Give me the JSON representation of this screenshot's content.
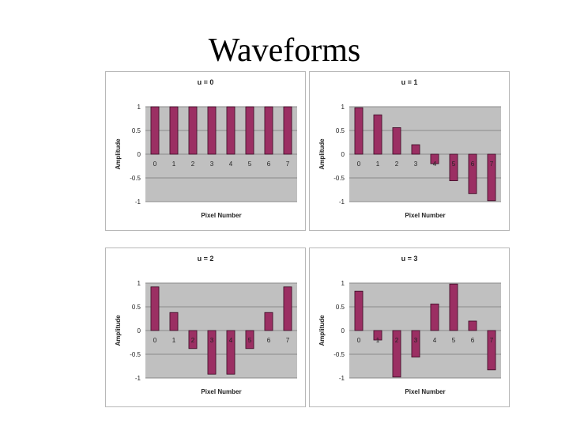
{
  "page": {
    "title": "Waveforms"
  },
  "colors": {
    "bar": "#9b2f63",
    "bar_stroke": "#3a0b24",
    "plot_bg": "#c0c0c0",
    "grid": "#8a8a8a"
  },
  "chart_data": [
    {
      "type": "bar",
      "title": "u = 0",
      "xlabel": "Pixel Number",
      "ylabel": "Amplitude",
      "ylim": [
        -1,
        1
      ],
      "yticks": [
        "1",
        "0.5",
        "0",
        "-0.5",
        "-1"
      ],
      "categories": [
        "0",
        "1",
        "2",
        "3",
        "4",
        "5",
        "6",
        "7"
      ],
      "values": [
        1,
        1,
        1,
        1,
        1,
        1,
        1,
        1
      ],
      "grid": true
    },
    {
      "type": "bar",
      "title": "u = 1",
      "xlabel": "Pixel Number",
      "ylabel": "Amplitude",
      "ylim": [
        -1,
        1
      ],
      "yticks": [
        "1",
        "0.5",
        "0",
        "-0.5",
        "-1"
      ],
      "categories": [
        "0",
        "1",
        "2",
        "3",
        "4",
        "5",
        "6",
        "7"
      ],
      "values": [
        0.98,
        0.83,
        0.56,
        0.2,
        -0.2,
        -0.56,
        -0.83,
        -0.98
      ],
      "grid": true
    },
    {
      "type": "bar",
      "title": "u = 2",
      "xlabel": "Pixel Number",
      "ylabel": "Amplitude",
      "ylim": [
        -1,
        1
      ],
      "yticks": [
        "1",
        "0.5",
        "0",
        "-0.5",
        "-1"
      ],
      "categories": [
        "0",
        "1",
        "2",
        "3",
        "4",
        "5",
        "6",
        "7"
      ],
      "values": [
        0.92,
        0.38,
        -0.38,
        -0.92,
        -0.92,
        -0.38,
        0.38,
        0.92
      ],
      "grid": true
    },
    {
      "type": "bar",
      "title": "u = 3",
      "xlabel": "Pixel Number",
      "ylabel": "Amplitude",
      "ylim": [
        -1,
        1
      ],
      "yticks": [
        "1",
        "0.5",
        "0",
        "-0.5",
        "-1"
      ],
      "categories": [
        "0",
        "1",
        "2",
        "3",
        "4",
        "5",
        "6",
        "7"
      ],
      "values": [
        0.83,
        -0.2,
        -0.98,
        -0.56,
        0.56,
        0.98,
        0.2,
        -0.83
      ],
      "grid": true
    }
  ]
}
